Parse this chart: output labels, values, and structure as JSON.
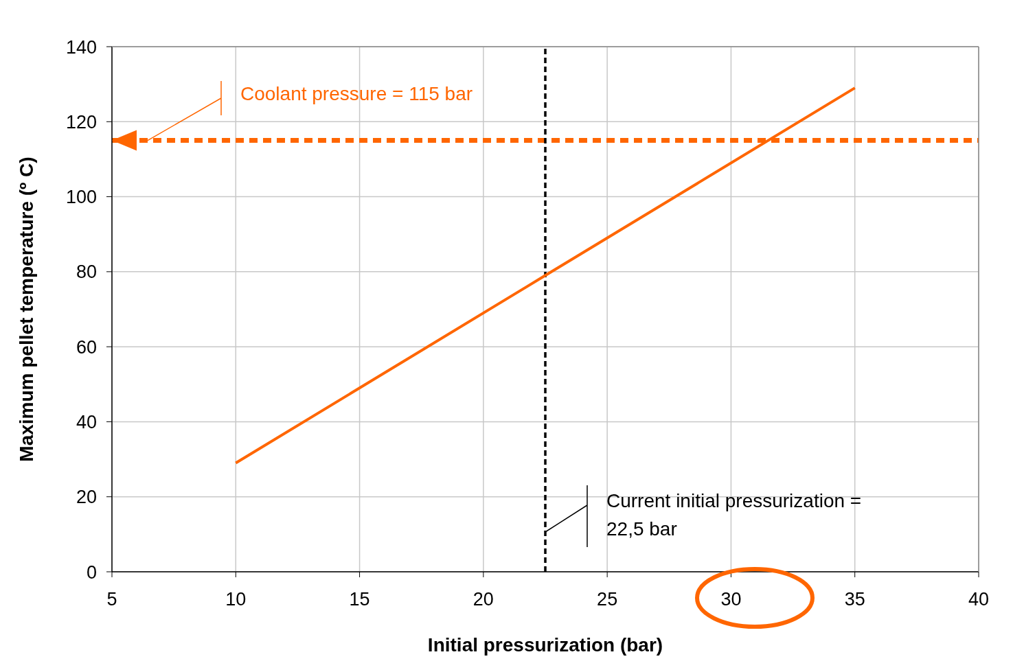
{
  "chart_data": {
    "type": "line",
    "xlabel": "Initial pressurization (bar)",
    "ylabel": "Maximum pellet temperature (º C)",
    "x": [
      10,
      22.5,
      35
    ],
    "series": [
      {
        "color": "#ff6600",
        "values": [
          29,
          79,
          129
        ]
      }
    ],
    "xlim": [
      5,
      40
    ],
    "xticks": [
      5,
      10,
      15,
      20,
      25,
      30,
      35,
      40
    ],
    "ylim": [
      0,
      140
    ],
    "yticks": [
      0,
      20,
      40,
      60,
      80,
      100,
      120,
      140
    ],
    "grid": true,
    "legend": false,
    "marker": "none",
    "line_style": "solid",
    "ref_lines": [
      {
        "axis": "y",
        "value": 115,
        "label": "Coolant pressure = 115 bar",
        "color": "#ff6600",
        "line_style": "dashed"
      },
      {
        "axis": "x",
        "value": 22.5,
        "label": "Current initial pressurization = 22,5 bar",
        "color": "#000000",
        "line_style": "dashed"
      }
    ]
  }
}
